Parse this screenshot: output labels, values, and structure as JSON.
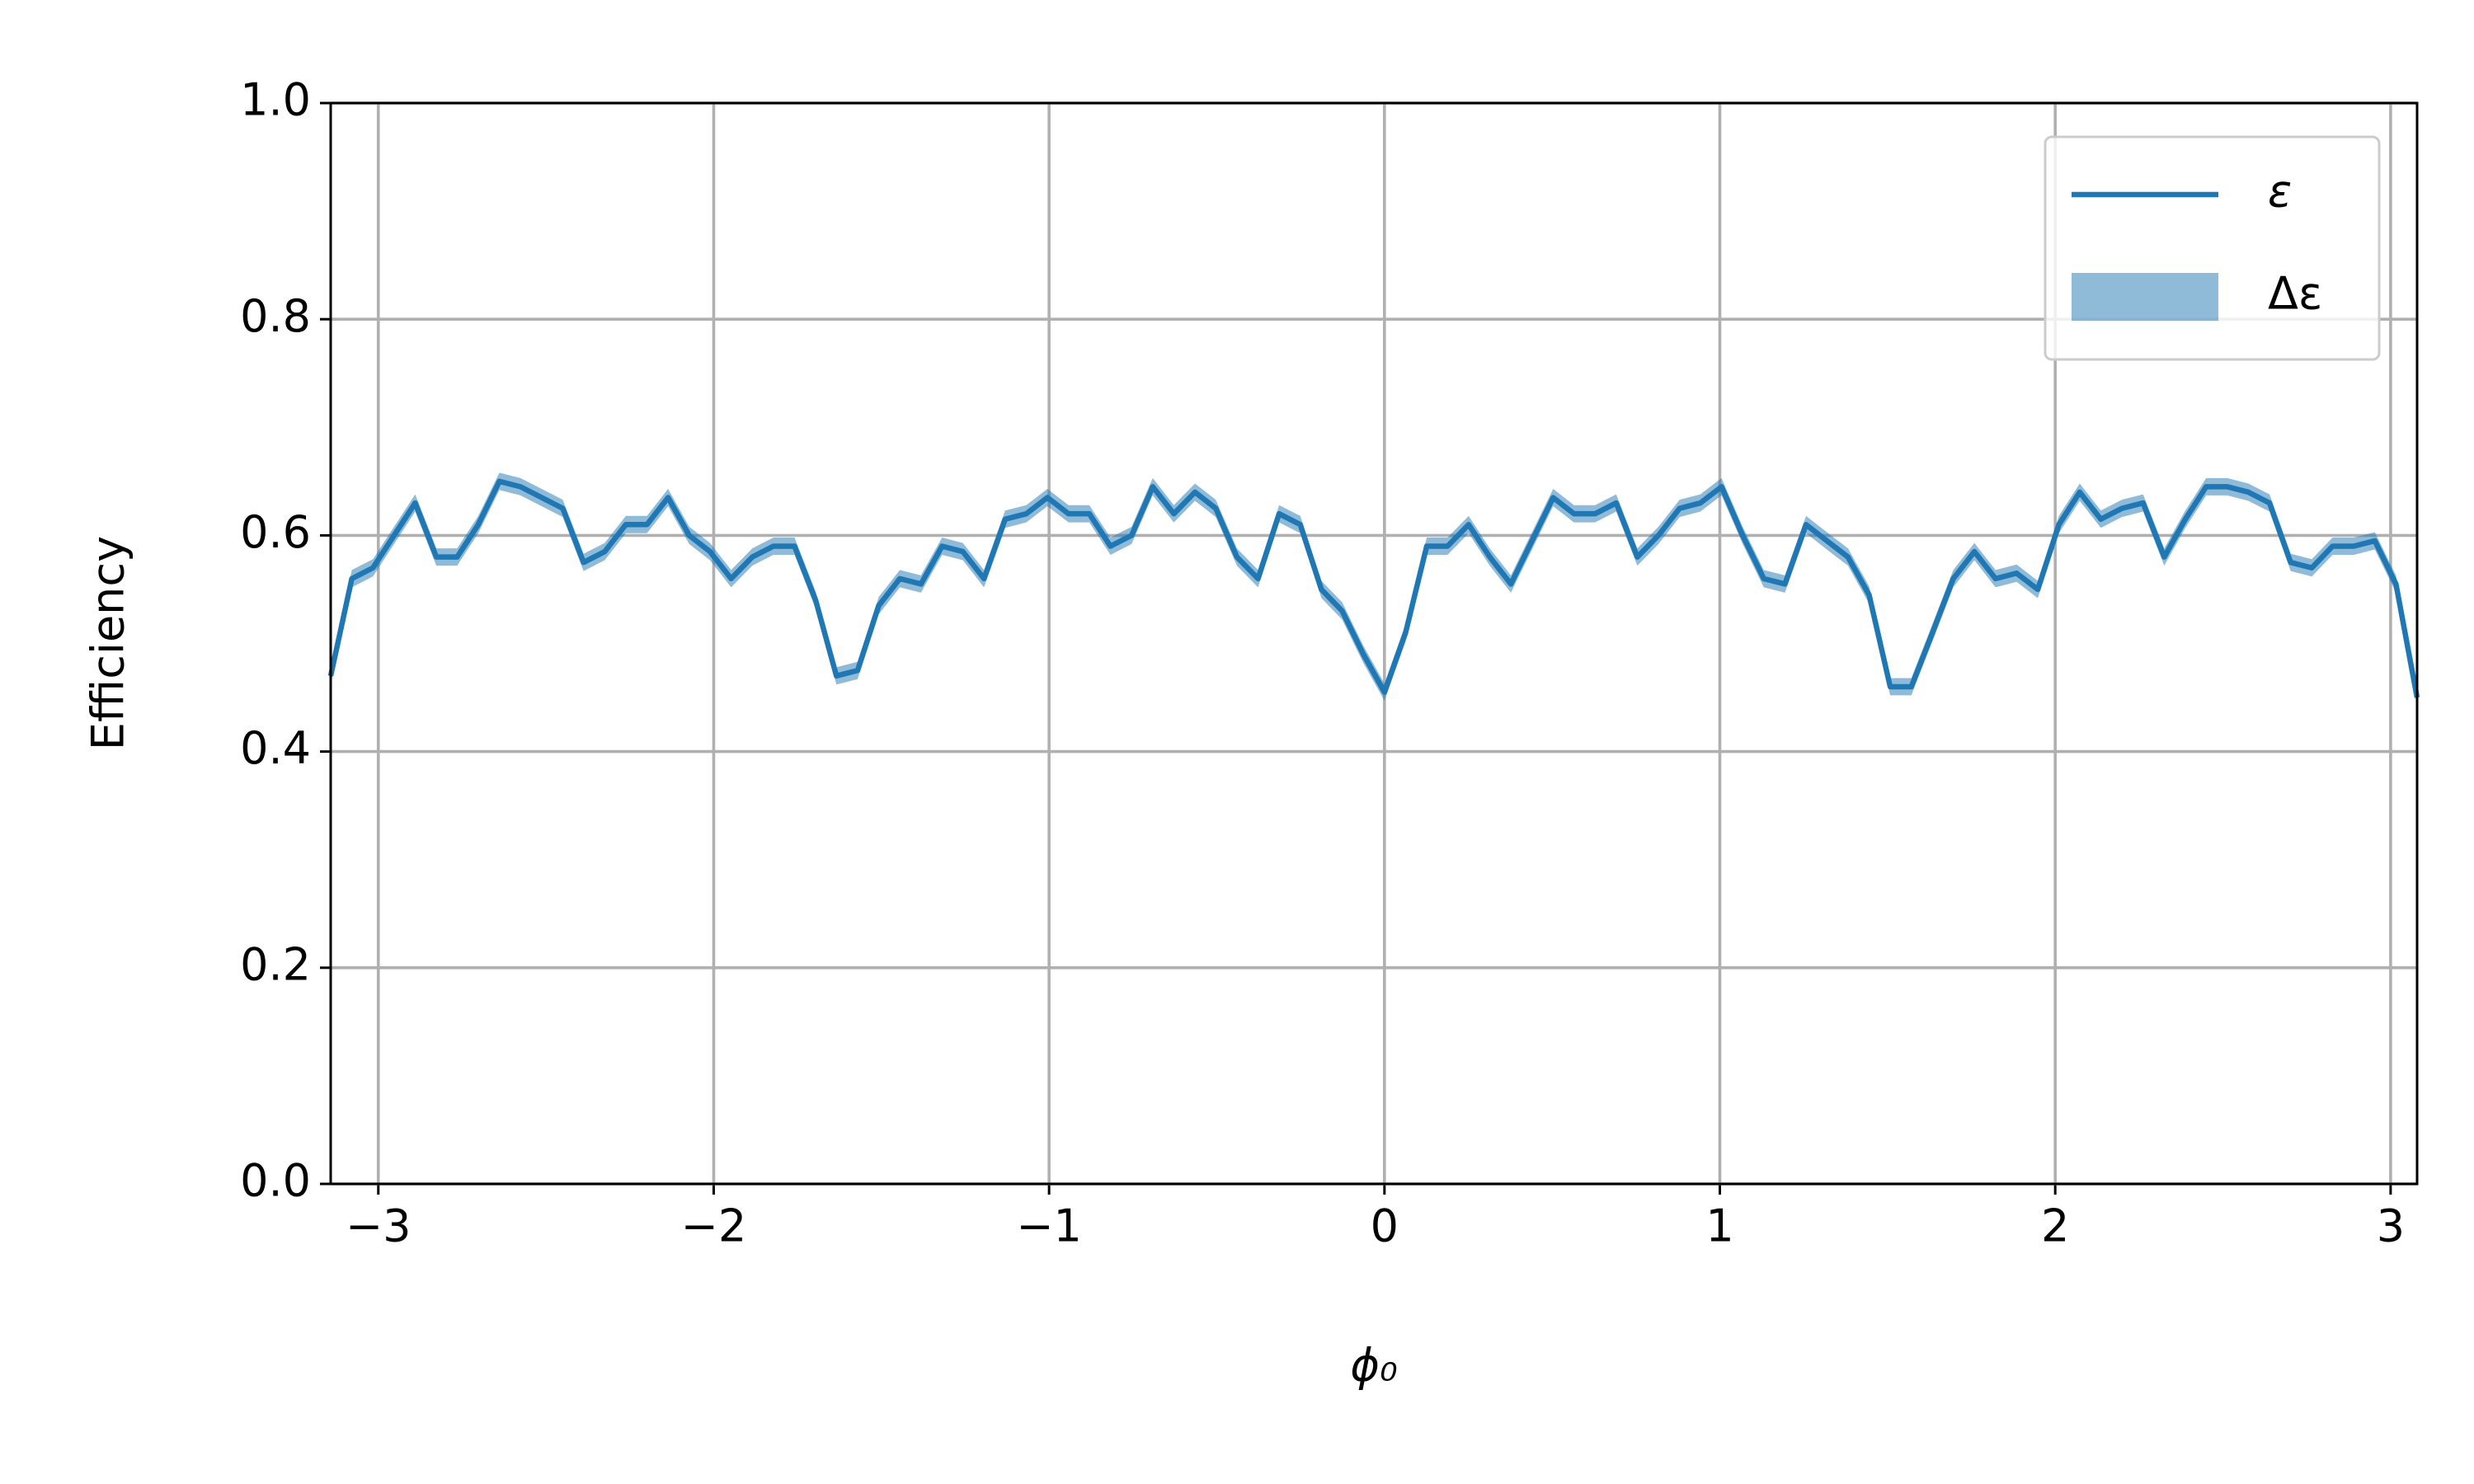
{
  "chart_data": {
    "type": "line",
    "xlabel": "ϕ₀",
    "ylabel": "Efficiency",
    "x": [
      -3.142,
      -3.079,
      -3.016,
      -2.953,
      -2.89,
      -2.827,
      -2.765,
      -2.702,
      -2.639,
      -2.576,
      -2.513,
      -2.45,
      -2.388,
      -2.325,
      -2.262,
      -2.199,
      -2.136,
      -2.073,
      -2.011,
      -1.948,
      -1.885,
      -1.822,
      -1.759,
      -1.696,
      -1.634,
      -1.571,
      -1.508,
      -1.445,
      -1.382,
      -1.319,
      -1.257,
      -1.194,
      -1.131,
      -1.068,
      -1.005,
      -0.942,
      -0.88,
      -0.817,
      -0.754,
      -0.691,
      -0.628,
      -0.565,
      -0.503,
      -0.44,
      -0.377,
      -0.314,
      -0.251,
      -0.188,
      -0.126,
      -0.063,
      0,
      0.063,
      0.126,
      0.188,
      0.251,
      0.314,
      0.377,
      0.44,
      0.503,
      0.565,
      0.628,
      0.691,
      0.754,
      0.817,
      0.88,
      0.942,
      1.005,
      1.068,
      1.131,
      1.194,
      1.257,
      1.319,
      1.382,
      1.445,
      1.508,
      1.571,
      1.634,
      1.696,
      1.759,
      1.822,
      1.885,
      1.948,
      2.011,
      2.073,
      2.136,
      2.199,
      2.262,
      2.325,
      2.388,
      2.45,
      2.513,
      2.576,
      2.639,
      2.702,
      2.765,
      2.827,
      2.89,
      2.953,
      3.016,
      3.079
    ],
    "series": [
      {
        "name": "ε",
        "color": "#1f77b4",
        "values": [
          0.47,
          0.56,
          0.57,
          0.6,
          0.63,
          0.58,
          0.58,
          0.61,
          0.65,
          0.645,
          0.635,
          0.625,
          0.575,
          0.585,
          0.61,
          0.61,
          0.635,
          0.6,
          0.585,
          0.56,
          0.58,
          0.59,
          0.59,
          0.54,
          0.47,
          0.475,
          0.535,
          0.56,
          0.555,
          0.59,
          0.585,
          0.56,
          0.615,
          0.62,
          0.635,
          0.62,
          0.62,
          0.59,
          0.6,
          0.645,
          0.62,
          0.64,
          0.625,
          0.58,
          0.56,
          0.62,
          0.61,
          0.55,
          0.53,
          0.49,
          0.455,
          0.51,
          0.59,
          0.59,
          0.61,
          0.58,
          0.555,
          0.595,
          0.635,
          0.62,
          0.62,
          0.63,
          0.58,
          0.6,
          0.625,
          0.63,
          0.645,
          0.6,
          0.56,
          0.555,
          0.61,
          0.595,
          0.58,
          0.545,
          0.46,
          0.46,
          0.51,
          0.56,
          0.585,
          0.56,
          0.565,
          0.55,
          0.61,
          0.64,
          0.615,
          0.625,
          0.63,
          0.58,
          0.615,
          0.645,
          0.645,
          0.64,
          0.63,
          0.575,
          0.57,
          0.59,
          0.59,
          0.595,
          0.555,
          0.45
        ]
      }
    ],
    "band": {
      "name": "Δε",
      "color": "#1f77b4",
      "alpha": 0.5,
      "errors": [
        0.008,
        0.008,
        0.008,
        0.008,
        0.008,
        0.008,
        0.008,
        0.008,
        0.008,
        0.008,
        0.008,
        0.008,
        0.008,
        0.008,
        0.008,
        0.008,
        0.008,
        0.008,
        0.008,
        0.008,
        0.008,
        0.008,
        0.008,
        0.008,
        0.008,
        0.008,
        0.008,
        0.008,
        0.008,
        0.008,
        0.008,
        0.008,
        0.008,
        0.008,
        0.008,
        0.008,
        0.008,
        0.008,
        0.008,
        0.008,
        0.008,
        0.008,
        0.008,
        0.008,
        0.008,
        0.008,
        0.008,
        0.008,
        0.008,
        0.008,
        0.008,
        0.008,
        0.008,
        0.008,
        0.008,
        0.008,
        0.008,
        0.008,
        0.008,
        0.008,
        0.008,
        0.008,
        0.008,
        0.008,
        0.008,
        0.008,
        0.008,
        0.008,
        0.008,
        0.008,
        0.008,
        0.008,
        0.008,
        0.008,
        0.008,
        0.008,
        0.008,
        0.008,
        0.008,
        0.008,
        0.008,
        0.008,
        0.008,
        0.008,
        0.008,
        0.008,
        0.008,
        0.008,
        0.008,
        0.008,
        0.008,
        0.008,
        0.008,
        0.008,
        0.008,
        0.008,
        0.008,
        0.008,
        0.008,
        0.008
      ]
    },
    "xlim": [
      -3.142,
      3.079
    ],
    "ylim": [
      0,
      1
    ],
    "xticks": [
      {
        "value": -3,
        "label": "−3"
      },
      {
        "value": -2,
        "label": "−2"
      },
      {
        "value": -1,
        "label": "−1"
      },
      0,
      1,
      2,
      3
    ],
    "yticks": [
      {
        "value": 0,
        "label": "0.0"
      },
      0.2,
      0.4,
      0.6,
      0.8,
      {
        "value": 1,
        "label": "1.0"
      }
    ],
    "grid": true,
    "legend": "upper right"
  }
}
